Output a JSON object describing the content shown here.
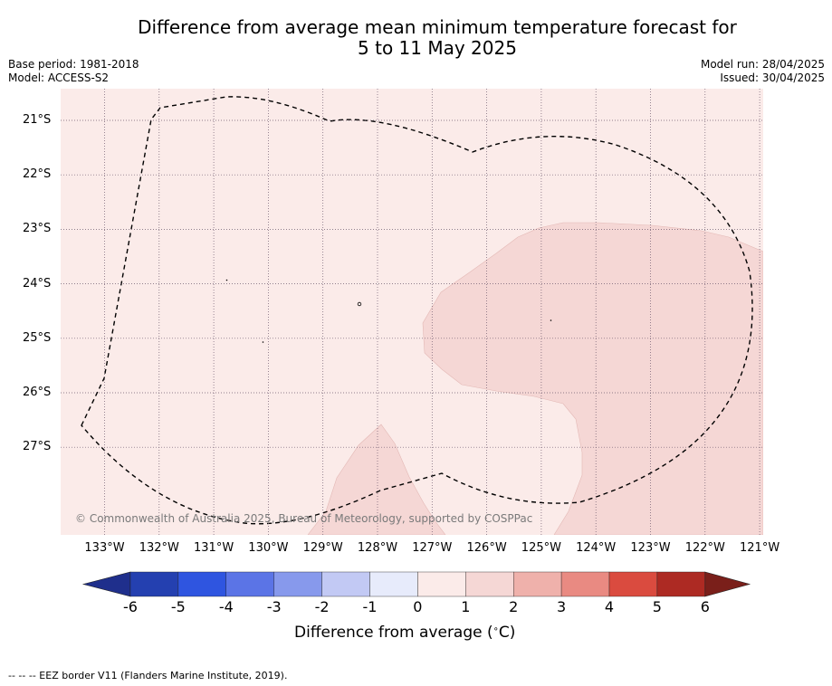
{
  "title": {
    "line1": "Difference from average mean minimum temperature forecast for",
    "line2": "5 to 11 May 2025"
  },
  "meta_left": {
    "base_period": "Base period: 1981-2018",
    "model": "Model: ACCESS-S2"
  },
  "meta_right": {
    "model_run": "Model run: 28/04/2025",
    "issued": "Issued: 30/04/2025"
  },
  "map": {
    "lat_labels": [
      "21°S",
      "22°S",
      "23°S",
      "24°S",
      "25°S",
      "26°S",
      "27°S"
    ],
    "lon_labels": [
      "133°W",
      "132°W",
      "131°W",
      "130°W",
      "129°W",
      "128°W",
      "127°W",
      "126°W",
      "125°W",
      "124°W",
      "123°W",
      "122°W",
      "121°W"
    ],
    "copyright": "© Commonwealth of Australia 2025, Bureau of Meteorology, supported by COSPPac",
    "colors": {
      "anomaly_0_to_1": "#fbebe9",
      "anomaly_1_to_2": "#f5d7d5"
    }
  },
  "colorbar": {
    "ticks": [
      "-6",
      "-5",
      "-4",
      "-3",
      "-2",
      "-1",
      "0",
      "1",
      "2",
      "3",
      "4",
      "5",
      "6"
    ],
    "colors": [
      "#1f2f8c",
      "#2440b0",
      "#2f55e0",
      "#5b74e6",
      "#8799ec",
      "#c2c9f4",
      "#e7ebfb",
      "#fbebe9",
      "#f5d7d5",
      "#efb1ab",
      "#e98a82",
      "#da4b3f",
      "#ad2a23",
      "#7a1f1a"
    ],
    "label": "Difference from average ( $^\\circ$C)"
  },
  "footer": {
    "legend": "-- -- -- EEZ border V11 (Flanders Marine Institute, 2019)."
  }
}
